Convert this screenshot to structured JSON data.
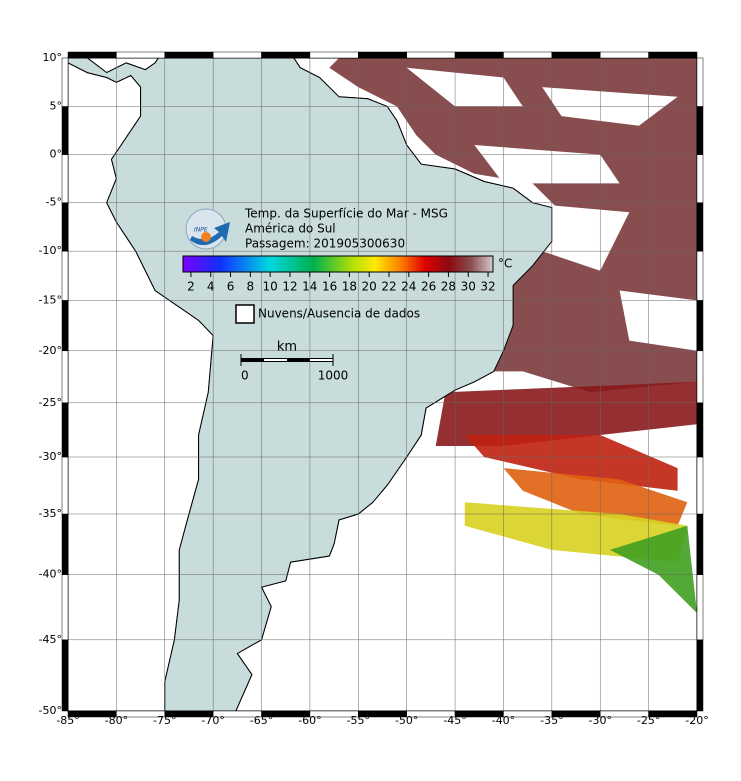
{
  "header": {
    "title": "Temp. da Superfície do Mar - MSG",
    "region": "América do Sul",
    "pass": "Passagem: 201905300630",
    "logo": "INPE"
  },
  "colorbar": {
    "ticks": [
      2,
      4,
      6,
      8,
      10,
      12,
      14,
      16,
      18,
      20,
      22,
      24,
      26,
      28,
      30,
      32
    ],
    "range": [
      1.2,
      32.5
    ],
    "unit": "°C"
  },
  "legend": {
    "label": "Nuvens/Ausencia de dados"
  },
  "scale_bar": {
    "unit": "km",
    "ticks": [
      0,
      1000
    ]
  },
  "map": {
    "xlim": [
      -85,
      -20
    ],
    "ylim": [
      -50,
      10
    ],
    "grid": true,
    "xticks": [
      {
        "value": -85,
        "label": "-85°"
      },
      {
        "value": -80,
        "label": "-80°"
      },
      {
        "value": -75,
        "label": "-75°"
      },
      {
        "value": -70,
        "label": "-70°"
      },
      {
        "value": -65,
        "label": "-65°"
      },
      {
        "value": -60,
        "label": "-60°"
      },
      {
        "value": -55,
        "label": "-55°"
      },
      {
        "value": -50,
        "label": "-50°"
      },
      {
        "value": -45,
        "label": "-45°"
      },
      {
        "value": -40,
        "label": "-40°"
      },
      {
        "value": -35,
        "label": "-35°"
      },
      {
        "value": -30,
        "label": "-30°"
      },
      {
        "value": -25,
        "label": "-25°"
      },
      {
        "value": -20,
        "label": "-20°"
      }
    ],
    "yticks": [
      {
        "value": 10,
        "label": "10°"
      },
      {
        "value": 5,
        "label": "5°"
      },
      {
        "value": 0,
        "label": "0°"
      },
      {
        "value": -5,
        "label": "-5°"
      },
      {
        "value": -10,
        "label": "-10°"
      },
      {
        "value": -15,
        "label": "-15°"
      },
      {
        "value": -20,
        "label": "-20°"
      },
      {
        "value": -25,
        "label": "-25°"
      },
      {
        "value": -30,
        "label": "-30°"
      },
      {
        "value": -35,
        "label": "-35°"
      },
      {
        "value": -40,
        "label": "-40°"
      },
      {
        "value": -45,
        "label": "-45°"
      },
      {
        "value": -50,
        "label": "-50°"
      }
    ]
  }
}
